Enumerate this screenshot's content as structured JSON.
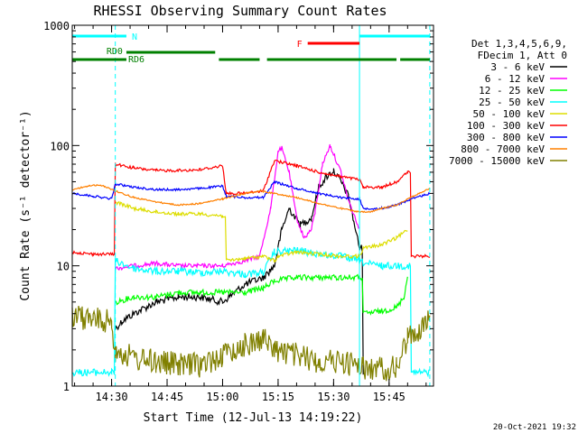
{
  "chart_data": {
    "type": "line",
    "title": "RHESSI Observing Summary Count Rates",
    "xlabel": "Start Time (12-Jul-13 14:19:22)",
    "ylabel": "Count Rate (s⁻¹ detector⁻¹)",
    "y_scale": "log",
    "ylim": [
      1,
      1000
    ],
    "y_ticks": [
      {
        "value": 1,
        "label": "1"
      },
      {
        "value": 10,
        "label": "10"
      },
      {
        "value": 100,
        "label": "100"
      },
      {
        "value": 1000,
        "label": "1000"
      }
    ],
    "xlim": [
      "14:19:22",
      "15:57:00"
    ],
    "x_ticks": [
      {
        "time": "14:30",
        "label": "14:30"
      },
      {
        "time": "14:45",
        "label": "14:45"
      },
      {
        "time": "15:00",
        "label": "15:00"
      },
      {
        "time": "15:15",
        "label": "15:15"
      },
      {
        "time": "15:30",
        "label": "15:30"
      },
      {
        "time": "15:45",
        "label": "15:45"
      }
    ],
    "legend": {
      "placement": "right",
      "header": [
        "Det 1,3,4,5,6,9,",
        "FDecim 1, Att 0"
      ]
    },
    "series": [
      {
        "name": "3 - 6 keV",
        "color": "#000000",
        "points": [
          [
            "14:31",
            3.0
          ],
          [
            "14:33",
            3.5
          ],
          [
            "14:36",
            4.0
          ],
          [
            "14:42",
            5.0
          ],
          [
            "14:48",
            5.5
          ],
          [
            "14:54",
            5.5
          ],
          [
            "15:00",
            5.0
          ],
          [
            "15:06",
            7.0
          ],
          [
            "15:11",
            8.0
          ],
          [
            "15:14",
            10.0
          ],
          [
            "15:16",
            20.0
          ],
          [
            "15:18",
            30.0
          ],
          [
            "15:21",
            22.0
          ],
          [
            "15:24",
            25.0
          ],
          [
            "15:26",
            45.0
          ],
          [
            "15:28",
            55.0
          ],
          [
            "15:30",
            62.0
          ],
          [
            "15:32",
            50.0
          ],
          [
            "15:34",
            38.0
          ],
          [
            "15:37",
            14.0
          ],
          [
            "15:38",
            1.3
          ]
        ]
      },
      {
        "name": "6 - 12 keV",
        "color": "#ff00ff",
        "points": [
          [
            "14:31",
            9.5
          ],
          [
            "14:36",
            10.0
          ],
          [
            "14:42",
            10.5
          ],
          [
            "14:48",
            10.0
          ],
          [
            "14:54",
            10.0
          ],
          [
            "15:00",
            10.0
          ],
          [
            "15:06",
            11.0
          ],
          [
            "15:10",
            12.0
          ],
          [
            "15:13",
            30.0
          ],
          [
            "15:15",
            90.0
          ],
          [
            "15:16",
            95.0
          ],
          [
            "15:18",
            60.0
          ],
          [
            "15:20",
            25.0
          ],
          [
            "15:22",
            17.0
          ],
          [
            "15:24",
            20.0
          ],
          [
            "15:25",
            28.0
          ],
          [
            "15:27",
            70.0
          ],
          [
            "15:29",
            100.0
          ],
          [
            "15:30",
            85.0
          ],
          [
            "15:32",
            60.0
          ],
          [
            "15:34",
            35.0
          ],
          [
            "15:37",
            20.0
          ]
        ]
      },
      {
        "name": "12 - 25 keV",
        "color": "#00ff00",
        "points": [
          [
            "14:31",
            5.0
          ],
          [
            "14:36",
            5.5
          ],
          [
            "14:42",
            5.5
          ],
          [
            "14:48",
            6.0
          ],
          [
            "14:54",
            6.0
          ],
          [
            "15:00",
            6.0
          ],
          [
            "15:06",
            6.0
          ],
          [
            "15:11",
            6.5
          ],
          [
            "15:14",
            7.5
          ],
          [
            "15:20",
            8.0
          ],
          [
            "15:26",
            8.0
          ],
          [
            "15:32",
            8.0
          ],
          [
            "15:37",
            8.0
          ],
          [
            "15:38",
            4.0
          ],
          [
            "15:43",
            4.2
          ],
          [
            "15:47",
            4.5
          ],
          [
            "15:49",
            5.5
          ],
          [
            "15:50",
            8.0
          ]
        ]
      },
      {
        "name": "25 - 50 keV",
        "color": "#00ffff",
        "points": [
          [
            "14:19:22",
            1.3
          ],
          [
            "14:25",
            1.3
          ],
          [
            "14:30",
            1.3
          ],
          [
            "14:31",
            11.0
          ],
          [
            "14:36",
            9.5
          ],
          [
            "14:42",
            9.0
          ],
          [
            "14:48",
            9.0
          ],
          [
            "14:54",
            8.8
          ],
          [
            "15:00",
            9.0
          ],
          [
            "15:06",
            8.5
          ],
          [
            "15:11",
            8.8
          ],
          [
            "15:14",
            13.0
          ],
          [
            "15:20",
            13.5
          ],
          [
            "15:26",
            12.5
          ],
          [
            "15:32",
            12.0
          ],
          [
            "15:37",
            11.0
          ],
          [
            "15:38",
            10.5
          ],
          [
            "15:43",
            10.0
          ],
          [
            "15:47",
            10.0
          ],
          [
            "15:50",
            10.0
          ],
          [
            "15:51",
            1.3
          ],
          [
            "15:56",
            1.3
          ]
        ]
      },
      {
        "name": "50 - 100 keV",
        "color": "#dddd00",
        "points": [
          [
            "14:31",
            34.0
          ],
          [
            "14:36",
            30.0
          ],
          [
            "14:42",
            28.0
          ],
          [
            "14:48",
            27.0
          ],
          [
            "14:54",
            27.0
          ],
          [
            "15:00",
            26.0
          ],
          [
            "15:01",
            11.0
          ],
          [
            "15:06",
            11.5
          ],
          [
            "15:11",
            12.0
          ],
          [
            "15:14",
            11.0
          ],
          [
            "15:15",
            12.0
          ],
          [
            "15:20",
            13.0
          ],
          [
            "15:26",
            12.5
          ],
          [
            "15:32",
            12.0
          ],
          [
            "15:37",
            12.0
          ],
          [
            "15:38",
            14.0
          ],
          [
            "15:43",
            15.0
          ],
          [
            "15:47",
            17.0
          ],
          [
            "15:50",
            20.0
          ]
        ]
      },
      {
        "name": "100 - 300 keV",
        "color": "#ff0000",
        "points": [
          [
            "14:19:22",
            13.0
          ],
          [
            "14:25",
            12.5
          ],
          [
            "14:30",
            12.5
          ],
          [
            "14:31",
            70.0
          ],
          [
            "14:36",
            65.0
          ],
          [
            "14:42",
            62.0
          ],
          [
            "14:48",
            62.0
          ],
          [
            "14:54",
            63.0
          ],
          [
            "15:00",
            68.0
          ],
          [
            "15:01",
            40.0
          ],
          [
            "15:06",
            40.0
          ],
          [
            "15:11",
            42.0
          ],
          [
            "15:14",
            75.0
          ],
          [
            "15:20",
            68.0
          ],
          [
            "15:26",
            60.0
          ],
          [
            "15:32",
            55.0
          ],
          [
            "15:37",
            52.0
          ],
          [
            "15:38",
            45.0
          ],
          [
            "15:43",
            45.0
          ],
          [
            "15:47",
            50.0
          ],
          [
            "15:50",
            60.0
          ],
          [
            "15:51",
            12.0
          ],
          [
            "15:56",
            12.0
          ]
        ]
      },
      {
        "name": "300 - 800 keV",
        "color": "#0000ff",
        "points": [
          [
            "14:19:22",
            40.0
          ],
          [
            "14:25",
            38.0
          ],
          [
            "14:30",
            36.0
          ],
          [
            "14:31",
            48.0
          ],
          [
            "14:36",
            45.0
          ],
          [
            "14:42",
            43.0
          ],
          [
            "14:48",
            43.0
          ],
          [
            "14:54",
            44.0
          ],
          [
            "15:00",
            46.0
          ],
          [
            "15:01",
            38.0
          ],
          [
            "15:06",
            37.0
          ],
          [
            "15:11",
            37.0
          ],
          [
            "15:14",
            50.0
          ],
          [
            "15:20",
            44.0
          ],
          [
            "15:26",
            40.0
          ],
          [
            "15:32",
            37.0
          ],
          [
            "15:37",
            36.0
          ],
          [
            "15:38",
            30.0
          ],
          [
            "15:43",
            30.0
          ],
          [
            "15:47",
            32.0
          ],
          [
            "15:50",
            35.0
          ],
          [
            "15:56",
            40.0
          ]
        ]
      },
      {
        "name": "800 - 7000 keV",
        "color": "#ff8000",
        "points": [
          [
            "14:19:22",
            43.0
          ],
          [
            "14:25",
            47.0
          ],
          [
            "14:28",
            46.0
          ],
          [
            "14:31",
            42.0
          ],
          [
            "14:36",
            37.0
          ],
          [
            "14:42",
            34.0
          ],
          [
            "14:48",
            32.0
          ],
          [
            "14:54",
            33.0
          ],
          [
            "15:00",
            36.0
          ],
          [
            "15:06",
            40.0
          ],
          [
            "15:10",
            42.0
          ],
          [
            "15:14",
            40.0
          ],
          [
            "15:20",
            37.0
          ],
          [
            "15:26",
            33.0
          ],
          [
            "15:32",
            30.0
          ],
          [
            "15:37",
            28.0
          ],
          [
            "15:40",
            28.0
          ],
          [
            "15:43",
            30.0
          ],
          [
            "15:47",
            32.0
          ],
          [
            "15:50",
            36.0
          ],
          [
            "15:56",
            44.0
          ]
        ]
      },
      {
        "name": "7000 - 15000 keV",
        "color": "#808000",
        "points": [
          [
            "14:19:22",
            3.8
          ],
          [
            "14:25",
            3.6
          ],
          [
            "14:30",
            3.4
          ],
          [
            "14:31",
            2.0
          ],
          [
            "14:36",
            1.7
          ],
          [
            "14:42",
            1.6
          ],
          [
            "14:48",
            1.5
          ],
          [
            "14:54",
            1.5
          ],
          [
            "15:00",
            1.8
          ],
          [
            "15:06",
            2.2
          ],
          [
            "15:11",
            2.5
          ],
          [
            "15:14",
            2.0
          ],
          [
            "15:20",
            1.8
          ],
          [
            "15:26",
            1.6
          ],
          [
            "15:32",
            1.6
          ],
          [
            "15:37",
            1.5
          ],
          [
            "15:38",
            1.4
          ],
          [
            "15:43",
            1.4
          ],
          [
            "15:47",
            1.4
          ],
          [
            "15:50",
            2.5
          ],
          [
            "15:56",
            3.5
          ]
        ]
      }
    ],
    "annotations": {
      "bars": [
        {
          "label": "N",
          "color": "#00ffff",
          "segments": [
            [
              "14:19:22",
              "14:34"
            ],
            [
              "15:37",
              "15:56"
            ]
          ]
        },
        {
          "label": "F",
          "color": "#ff0000",
          "segments": [
            [
              "15:23",
              "15:37"
            ]
          ]
        },
        {
          "label": "RD0",
          "color": "#008000",
          "segments": [
            [
              "14:34",
              "14:58"
            ]
          ]
        },
        {
          "label": "RD6",
          "color": "#008000",
          "segments": [
            [
              "14:19:22",
              "14:34"
            ],
            [
              "14:59",
              "15:10"
            ],
            [
              "15:12",
              "15:47"
            ],
            [
              "15:48",
              "15:56"
            ]
          ]
        }
      ],
      "transitions": [
        {
          "time": "14:31",
          "style": "dashed"
        },
        {
          "time": "15:37",
          "style": "solid"
        },
        {
          "time": "15:56",
          "style": "dashed"
        }
      ]
    }
  },
  "footer": {
    "timestamp": "20-Oct-2021 19:32"
  }
}
